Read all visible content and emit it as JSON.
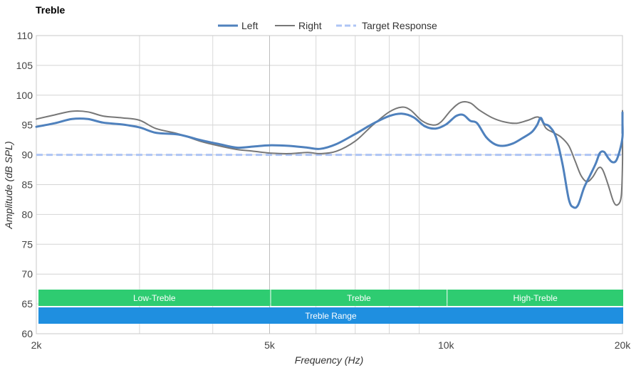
{
  "chart_data": {
    "type": "line",
    "title": "Treble",
    "xlabel": "Frequency (Hz)",
    "ylabel": "Amplitude (dB SPL)",
    "x_scale": "log",
    "xlim": [
      2000,
      20000
    ],
    "ylim": [
      60,
      110
    ],
    "x_ticks": [
      {
        "value": 2000,
        "label": "2k"
      },
      {
        "value": 5000,
        "label": "5k"
      },
      {
        "value": 10000,
        "label": "10k"
      },
      {
        "value": 20000,
        "label": "20k"
      }
    ],
    "y_ticks": [
      {
        "value": 60,
        "label": "60"
      },
      {
        "value": 65,
        "label": "65"
      },
      {
        "value": 70,
        "label": "70"
      },
      {
        "value": 75,
        "label": "75"
      },
      {
        "value": 80,
        "label": "80"
      },
      {
        "value": 85,
        "label": "85"
      },
      {
        "value": 90,
        "label": "90"
      },
      {
        "value": 95,
        "label": "95"
      },
      {
        "value": 100,
        "label": "100"
      },
      {
        "value": 105,
        "label": "105"
      },
      {
        "value": 110,
        "label": "110"
      }
    ],
    "grid": true,
    "legend_position": "top-center",
    "series": [
      {
        "name": "Left",
        "color": "#4f81bd",
        "style": "solid-thick",
        "points": [
          [
            2000,
            94.7
          ],
          [
            2150,
            95.3
          ],
          [
            2300,
            96.0
          ],
          [
            2450,
            96.0
          ],
          [
            2600,
            95.4
          ],
          [
            2800,
            95.1
          ],
          [
            3000,
            94.6
          ],
          [
            3200,
            93.7
          ],
          [
            3500,
            93.4
          ],
          [
            3800,
            92.5
          ],
          [
            4100,
            91.8
          ],
          [
            4400,
            91.2
          ],
          [
            4700,
            91.4
          ],
          [
            5000,
            91.6
          ],
          [
            5400,
            91.5
          ],
          [
            5800,
            91.2
          ],
          [
            6100,
            91.0
          ],
          [
            6500,
            91.8
          ],
          [
            7000,
            93.5
          ],
          [
            7500,
            95.2
          ],
          [
            8000,
            96.5
          ],
          [
            8400,
            96.9
          ],
          [
            8800,
            96.3
          ],
          [
            9200,
            94.8
          ],
          [
            9600,
            94.4
          ],
          [
            10000,
            95.1
          ],
          [
            10400,
            96.5
          ],
          [
            10700,
            96.7
          ],
          [
            11000,
            95.7
          ],
          [
            11300,
            95.3
          ],
          [
            11700,
            93.0
          ],
          [
            12100,
            91.8
          ],
          [
            12500,
            91.5
          ],
          [
            13000,
            91.9
          ],
          [
            13500,
            92.8
          ],
          [
            14000,
            93.8
          ],
          [
            14300,
            95.0
          ],
          [
            14500,
            96.2
          ],
          [
            14700,
            95.2
          ],
          [
            15000,
            94.8
          ],
          [
            15400,
            93.0
          ],
          [
            15800,
            88.5
          ],
          [
            16200,
            82.5
          ],
          [
            16500,
            81.2
          ],
          [
            16800,
            81.6
          ],
          [
            17200,
            84.5
          ],
          [
            17600,
            86.5
          ],
          [
            18000,
            88.5
          ],
          [
            18300,
            90.3
          ],
          [
            18600,
            90.5
          ],
          [
            18900,
            89.5
          ],
          [
            19200,
            88.8
          ],
          [
            19500,
            89.0
          ],
          [
            19800,
            90.8
          ],
          [
            20000,
            93.0
          ],
          [
            20200,
            95.5
          ],
          [
            20400,
            97.0
          ],
          [
            20600,
            96.8
          ],
          [
            20900,
            95.5
          ],
          [
            21200,
            94.0
          ],
          [
            21500,
            93.6
          ],
          [
            21800,
            94.0
          ]
        ]
      },
      {
        "name": "Right",
        "color": "#777777",
        "style": "solid-thin",
        "points": [
          [
            2000,
            96.0
          ],
          [
            2150,
            96.7
          ],
          [
            2300,
            97.3
          ],
          [
            2450,
            97.2
          ],
          [
            2600,
            96.5
          ],
          [
            2800,
            96.2
          ],
          [
            3000,
            95.8
          ],
          [
            3200,
            94.4
          ],
          [
            3500,
            93.5
          ],
          [
            3800,
            92.3
          ],
          [
            4100,
            91.5
          ],
          [
            4400,
            90.9
          ],
          [
            4700,
            90.6
          ],
          [
            5000,
            90.3
          ],
          [
            5400,
            90.2
          ],
          [
            5800,
            90.4
          ],
          [
            6100,
            90.2
          ],
          [
            6500,
            90.6
          ],
          [
            7000,
            92.3
          ],
          [
            7500,
            95.0
          ],
          [
            8000,
            97.2
          ],
          [
            8400,
            98.0
          ],
          [
            8700,
            97.5
          ],
          [
            9100,
            95.7
          ],
          [
            9500,
            95.0
          ],
          [
            9800,
            95.5
          ],
          [
            10200,
            97.5
          ],
          [
            10600,
            98.8
          ],
          [
            11000,
            98.7
          ],
          [
            11400,
            97.5
          ],
          [
            12000,
            96.2
          ],
          [
            12600,
            95.5
          ],
          [
            13200,
            95.3
          ],
          [
            13800,
            95.8
          ],
          [
            14400,
            96.3
          ],
          [
            14800,
            94.5
          ],
          [
            15200,
            93.8
          ],
          [
            15700,
            93.0
          ],
          [
            16200,
            91.5
          ],
          [
            16600,
            89.0
          ],
          [
            17000,
            86.5
          ],
          [
            17400,
            85.5
          ],
          [
            17800,
            86.3
          ],
          [
            18200,
            87.8
          ],
          [
            18500,
            87.5
          ],
          [
            18900,
            85.0
          ],
          [
            19300,
            82.2
          ],
          [
            19600,
            81.6
          ],
          [
            19900,
            83.0
          ],
          [
            20200,
            88.5
          ],
          [
            20500,
            93.5
          ],
          [
            20700,
            96.3
          ],
          [
            20900,
            97.0
          ],
          [
            21100,
            97.4
          ],
          [
            21300,
            96.5
          ],
          [
            21600,
            94.0
          ],
          [
            21900,
            91.5
          ],
          [
            22200,
            90.0
          ]
        ]
      },
      {
        "name": "Target Response",
        "color": "#adc4f5",
        "style": "dashed",
        "points": [
          [
            2000,
            90
          ],
          [
            22200,
            90
          ]
        ]
      }
    ],
    "bands": [
      {
        "label": "Low-Treble",
        "from": 2000,
        "to": 5000,
        "color": "#2ecc71",
        "row": 1
      },
      {
        "label": "Treble",
        "from": 5000,
        "to": 10000,
        "color": "#2ecc71",
        "row": 1
      },
      {
        "label": "High-Treble",
        "from": 10000,
        "to": 22300,
        "color": "#2ecc71",
        "row": 1
      },
      {
        "label": "Treble Range",
        "from": 2000,
        "to": 22300,
        "color": "#1f8fe0",
        "row": 2
      }
    ]
  }
}
